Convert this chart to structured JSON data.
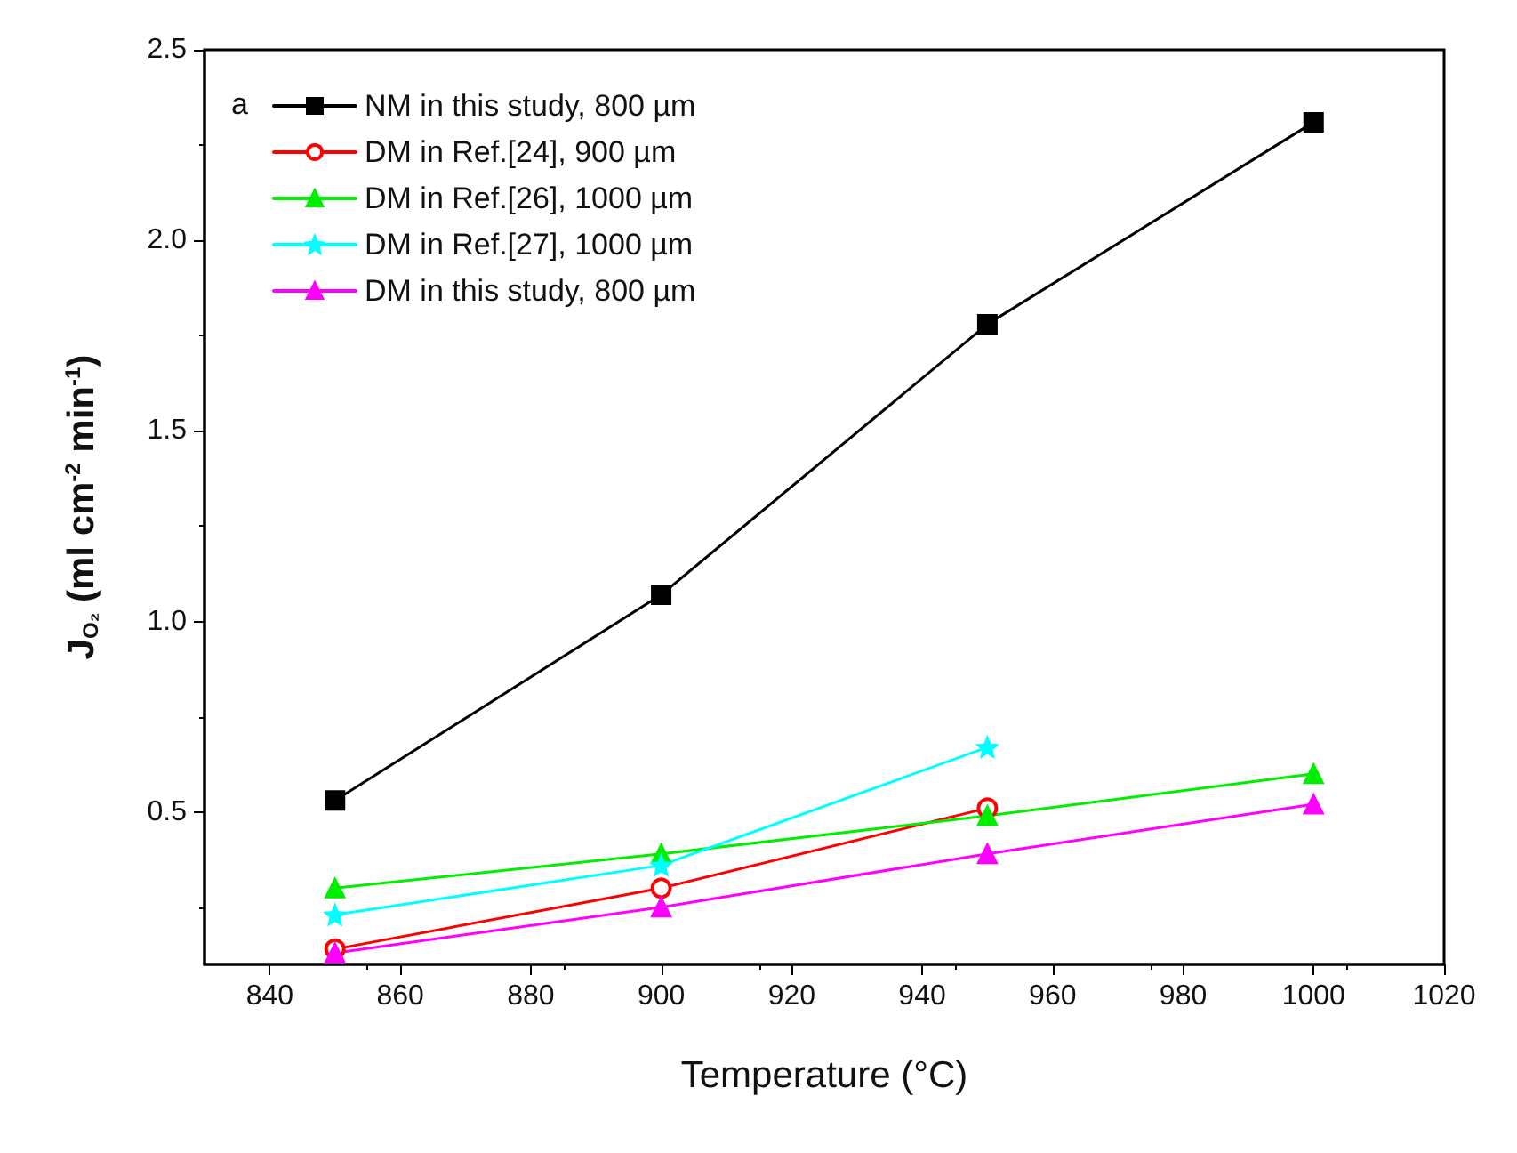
{
  "chart_data": {
    "type": "line",
    "xlabel": "Temperature (°C)",
    "ylabel": "J$_{O₂}$ (ml cm$^{-2}$ min$^{-1}$)",
    "annotations": [
      "a"
    ],
    "x": [
      850,
      900,
      950,
      1000
    ],
    "xlim": [
      830,
      1020
    ],
    "xticks": [
      840,
      860,
      880,
      900,
      920,
      940,
      960,
      980,
      1000,
      1020
    ],
    "ylim": [
      0.1,
      2.5
    ],
    "yticks": [
      0.5,
      {
        "value": 1,
        "label": "1.0"
      },
      1.5,
      {
        "value": 2,
        "label": "2.0"
      },
      2.5
    ],
    "legend": "top left",
    "grid": false,
    "line_style": "solid",
    "series": [
      {
        "name": "NM in this study, 800 µm",
        "color": "#000000",
        "marker": "square",
        "values": [
          0.53,
          1.07,
          1.78,
          2.31
        ]
      },
      {
        "name": "DM in Ref.[24], 900 µm",
        "color": "#ff0000",
        "marker": "circle",
        "values": [
          0.14,
          0.3,
          0.51,
          null
        ]
      },
      {
        "name": "DM in Ref.[26], 1000 µm",
        "color": "#00ee00",
        "marker": "triangle",
        "values": [
          0.3,
          0.39,
          0.49,
          0.6
        ]
      },
      {
        "name": "DM in Ref.[27], 1000 µm",
        "color": "#00ffff",
        "marker": "star",
        "values": [
          0.23,
          0.36,
          0.67,
          null
        ]
      },
      {
        "name": "DM in this study, 800 µm",
        "color": "#ff00ff",
        "marker": "triangle",
        "values": [
          0.13,
          0.25,
          0.39,
          0.52
        ]
      }
    ]
  }
}
